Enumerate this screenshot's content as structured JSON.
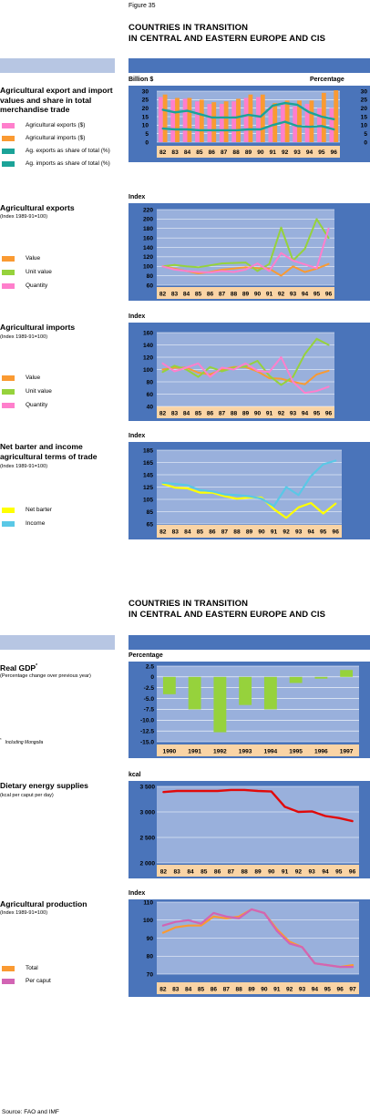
{
  "figure_label": "Figure 35",
  "header_top": {
    "line1": "COUNTRIES IN TRANSITION",
    "line2": "IN CENTRAL AND EASTERN EUROPE AND CIS"
  },
  "header_mid": {
    "line1": "COUNTRIES IN TRANSITION",
    "line2": "IN CENTRAL AND EASTERN EUROPE AND CIS"
  },
  "source": "Source: FAO and IMF",
  "colors": {
    "plot_bg": "#99b0dc",
    "band": "#4a74ba",
    "band_light": "#b7c6e3",
    "tickband": "#fad4a5",
    "grid": "#ffffff"
  },
  "panels": {
    "trade": {
      "title": "Agricultural export and import values and share in total merchandise trade",
      "left_unit": "Billion $",
      "right_unit": "Percentage",
      "legend": [
        "Agricultural exports ($)",
        "Agricultural imports ($)",
        "Ag. exports as share of total (%)",
        "Ag. imports as share of total (%)"
      ]
    },
    "exports": {
      "title": "Agricultural exports",
      "subtitle": "(Index 1989-91=100)",
      "unit": "Index",
      "legend": [
        "Value",
        "Unit value",
        "Quantity"
      ]
    },
    "imports": {
      "title": "Agricultural imports",
      "subtitle": "(Index 1989-91=100)",
      "unit": "Index",
      "legend": [
        "Value",
        "Unit value",
        "Quantity"
      ]
    },
    "tot": {
      "title": "Net barter and income agricultural terms of trade",
      "subtitle": "(Index 1989-91=100)",
      "unit": "Index",
      "legend": [
        "Net barter",
        "Income"
      ]
    },
    "gdp": {
      "title": "Real GDP",
      "title_sup": "*",
      "subtitle": "(Percentage change over previous year)",
      "unit": "Percentage",
      "footnote_sup": "*",
      "footnote": "Including Mongolia"
    },
    "des": {
      "title": "Dietary energy supplies",
      "subtitle": "(kcal per caput per day)",
      "unit": "kcal"
    },
    "prod": {
      "title": "Agricultural production",
      "subtitle": "(Index 1989-91=100)",
      "unit": "Index",
      "legend": [
        "Total",
        "Per caput"
      ]
    }
  },
  "chart_data": [
    {
      "id": "trade",
      "type": "bar",
      "categories": [
        "82",
        "83",
        "84",
        "85",
        "86",
        "87",
        "88",
        "89",
        "90",
        "91",
        "92",
        "93",
        "94",
        "95",
        "96"
      ],
      "ylim": [
        0,
        30
      ],
      "y2lim": [
        0,
        30
      ],
      "yticks": [
        "0",
        "5",
        "10",
        "15",
        "20",
        "25",
        "30"
      ],
      "series": [
        {
          "name": "Agricultural exports ($)",
          "kind": "bar",
          "color": "#ff7fcc",
          "values": [
            26.5,
            25.0,
            25.5,
            24.0,
            22.5,
            22.5,
            24.0,
            26.0,
            26.5,
            21.0,
            22.0,
            21.0,
            22.5,
            20.0,
            20.0
          ]
        },
        {
          "name": "Agricultural imports ($)",
          "kind": "bar",
          "color": "#fa9a32",
          "values": [
            28.0,
            26.0,
            26.0,
            25.0,
            23.5,
            24.0,
            25.5,
            28.0,
            28.0,
            23.0,
            24.5,
            24.5,
            24.5,
            29.0,
            30.5
          ]
        },
        {
          "name": "Ag. exports as share of total (%)",
          "kind": "line",
          "color": "#1ba398",
          "values": [
            8.0,
            7.5,
            7.5,
            7.0,
            7.0,
            7.0,
            7.0,
            7.5,
            7.5,
            10.0,
            12.0,
            9.5,
            9.0,
            9.5,
            7.5
          ]
        },
        {
          "name": "Ag. imports as share of total (%)",
          "kind": "line",
          "color": "#1ba398",
          "values": [
            19.0,
            17.5,
            18.5,
            16.5,
            14.5,
            14.5,
            14.5,
            16.0,
            15.0,
            21.5,
            23.0,
            22.0,
            17.5,
            15.0,
            13.5
          ]
        }
      ]
    },
    {
      "id": "exports",
      "type": "line",
      "categories": [
        "82",
        "83",
        "84",
        "85",
        "86",
        "87",
        "88",
        "89",
        "90",
        "91",
        "92",
        "93",
        "94",
        "95",
        "96"
      ],
      "ylim": [
        60,
        220
      ],
      "yticks": [
        "60",
        "80",
        "100",
        "120",
        "140",
        "160",
        "180",
        "200",
        "220"
      ],
      "series": [
        {
          "name": "Value",
          "color": "#fa9a32",
          "values": [
            100,
            95,
            90,
            85,
            88,
            93,
            95,
            98,
            96,
            95,
            80,
            100,
            88,
            95,
            105
          ]
        },
        {
          "name": "Unit value",
          "color": "#96d23c",
          "values": [
            100,
            103,
            100,
            98,
            102,
            106,
            107,
            108,
            90,
            105,
            182,
            112,
            137,
            200,
            160
          ]
        },
        {
          "name": "Quantity",
          "color": "#ff7fcc",
          "values": [
            100,
            93,
            90,
            88,
            87,
            90,
            88,
            93,
            106,
            90,
            128,
            112,
            104,
            96,
            180
          ]
        }
      ]
    },
    {
      "id": "imports",
      "type": "line",
      "categories": [
        "82",
        "83",
        "84",
        "85",
        "86",
        "87",
        "88",
        "89",
        "90",
        "91",
        "92",
        "93",
        "94",
        "95",
        "96"
      ],
      "ylim": [
        40,
        160
      ],
      "yticks": [
        "40",
        "60",
        "80",
        "100",
        "120",
        "140",
        "160"
      ],
      "series": [
        {
          "name": "Value",
          "color": "#fa9a32",
          "values": [
            100,
            103,
            103,
            95,
            92,
            100,
            104,
            104,
            97,
            86,
            85,
            80,
            76,
            92,
            98
          ]
        },
        {
          "name": "Unit value",
          "color": "#96d23c",
          "values": [
            96,
            106,
            100,
            88,
            104,
            97,
            103,
            105,
            114,
            90,
            75,
            88,
            125,
            150,
            140
          ]
        },
        {
          "name": "Quantity",
          "color": "#ff7fcc",
          "values": [
            110,
            97,
            103,
            110,
            88,
            103,
            100,
            110,
            98,
            96,
            120,
            80,
            62,
            65,
            72
          ]
        }
      ]
    },
    {
      "id": "tot",
      "type": "line",
      "categories": [
        "82",
        "83",
        "84",
        "85",
        "86",
        "87",
        "88",
        "89",
        "90",
        "91",
        "92",
        "93",
        "94",
        "95",
        "96"
      ],
      "ylim": [
        65,
        185
      ],
      "yticks": [
        "65",
        "85",
        "105",
        "125",
        "145",
        "165",
        "185"
      ],
      "series": [
        {
          "name": "Net barter",
          "color": "#ffff00",
          "values": [
            130,
            124,
            123,
            116,
            116,
            110,
            106,
            108,
            108,
            89,
            75,
            92,
            99,
            82,
            98
          ]
        },
        {
          "name": "Income",
          "color": "#5ac8e6",
          "values": [
            132,
            130,
            128,
            120,
            118,
            113,
            112,
            110,
            106,
            94,
            125,
            112,
            143,
            162,
            168
          ]
        }
      ]
    },
    {
      "id": "gdp",
      "type": "bar",
      "categories": [
        "1990",
        "1991",
        "1992",
        "1993",
        "1994",
        "1995",
        "1996",
        "1997"
      ],
      "ylim": [
        -15,
        2.5
      ],
      "yticks": [
        "-15.0",
        "-12.5",
        "-10.0",
        "-7.5",
        "-5.0",
        "-2.5",
        "0",
        "2.5"
      ],
      "series": [
        {
          "name": "",
          "color": "#96d23c",
          "values": [
            -4.0,
            -7.5,
            -12.8,
            -6.5,
            -7.5,
            -1.4,
            -0.4,
            1.6
          ]
        }
      ]
    },
    {
      "id": "des",
      "type": "line",
      "categories": [
        "82",
        "83",
        "84",
        "85",
        "86",
        "87",
        "88",
        "89",
        "90",
        "91",
        "92",
        "93",
        "94",
        "95",
        "96"
      ],
      "ylim": [
        2000,
        3500
      ],
      "yticks": [
        "2 000",
        "2 500",
        "3 000",
        "3 500"
      ],
      "series": [
        {
          "name": "",
          "color": "#e10a0a",
          "values": [
            3390,
            3410,
            3410,
            3410,
            3410,
            3430,
            3430,
            3410,
            3400,
            3100,
            3000,
            3010,
            2920,
            2880,
            2820
          ]
        }
      ]
    },
    {
      "id": "prod",
      "type": "line",
      "categories": [
        "82",
        "83",
        "84",
        "85",
        "86",
        "87",
        "88",
        "89",
        "90",
        "91",
        "92",
        "93",
        "94",
        "95",
        "96",
        "97"
      ],
      "ylim": [
        70,
        110
      ],
      "yticks": [
        "70",
        "80",
        "90",
        "100",
        "110"
      ],
      "series": [
        {
          "name": "Total",
          "color": "#fa9a32",
          "values": [
            93,
            96,
            97,
            97,
            102,
            101,
            102,
            106,
            104,
            95,
            88,
            85,
            76,
            75,
            74,
            75
          ]
        },
        {
          "name": "Per caput",
          "color": "#d264b4",
          "values": [
            97,
            99,
            100,
            98,
            104,
            102,
            101,
            106,
            104,
            94,
            87,
            85,
            76,
            75,
            74,
            74
          ]
        }
      ]
    }
  ]
}
